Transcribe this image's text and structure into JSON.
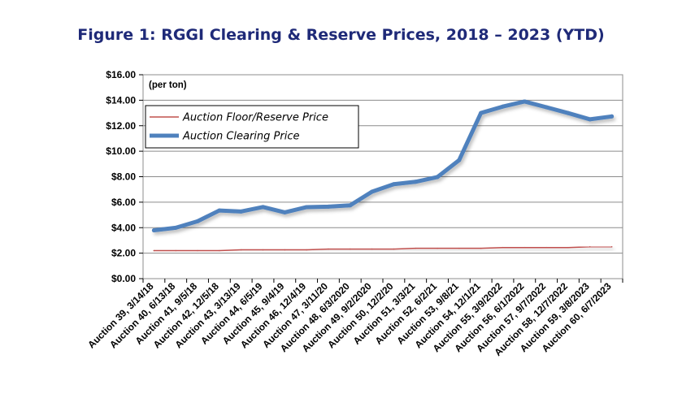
{
  "chart_data": {
    "type": "line",
    "title": "Figure 1: RGGI Clearing & Reserve Prices, 2018 – 2023 (YTD)",
    "unit_note": "(per ton)",
    "xlabel": "",
    "ylabel": "",
    "ylim": [
      0,
      16
    ],
    "yticks": [
      "$0.00",
      "$2.00",
      "$4.00",
      "$6.00",
      "$8.00",
      "$10.00",
      "$12.00",
      "$14.00",
      "$16.00"
    ],
    "ytick_values": [
      0,
      2,
      4,
      6,
      8,
      10,
      12,
      14,
      16
    ],
    "grid": true,
    "legend_position": "top-left",
    "categories": [
      "Auction 39, 3/14/18",
      "Auction 40, 6/13/18",
      "Auction 41, 9/5/18",
      "Auction 42, 12/5/18",
      "Auction 43, 3/13/19",
      "Auction 44, 6/5/19",
      "Auction 45, 9/4/19",
      "Auction 46, 12/4/19",
      "Auction 47, 3/11/20",
      "Auction 48, 6/3/2020",
      "Auction 49, 9/2/2020",
      "Auction 50, 12/2/20",
      "Auction 51, 3/3/21",
      "Auction 52, 6/2/21",
      "Auction 53, 9/8/21",
      "Auction 54, 12/1/21",
      "Auction 55, 3/9/2022",
      "Auction 56, 6/1/2022",
      "Auction 57, 9/7/2022",
      "Auction 58, 12/7/2022",
      "Auction 59, 3/8/2023",
      "Auction 60, 6/7/2023"
    ],
    "series": [
      {
        "name": "Auction Floor/Reserve Price",
        "color": "#c0504d",
        "values": [
          2.2,
          2.2,
          2.2,
          2.2,
          2.26,
          2.26,
          2.26,
          2.26,
          2.32,
          2.32,
          2.32,
          2.32,
          2.38,
          2.38,
          2.38,
          2.38,
          2.44,
          2.44,
          2.44,
          2.44,
          2.5,
          2.5
        ]
      },
      {
        "name": "Auction Clearing Price",
        "color": "#4f81bd",
        "values": [
          3.79,
          3.99,
          4.5,
          5.35,
          5.27,
          5.62,
          5.2,
          5.61,
          5.65,
          5.75,
          6.82,
          7.41,
          7.6,
          7.97,
          9.3,
          13.0,
          13.5,
          13.9,
          13.45,
          12.99,
          12.5,
          12.73
        ]
      }
    ]
  },
  "colors": {
    "title": "#1f2a78",
    "grid": "#8c8c8c",
    "plot_border": "#8c8c8c"
  }
}
